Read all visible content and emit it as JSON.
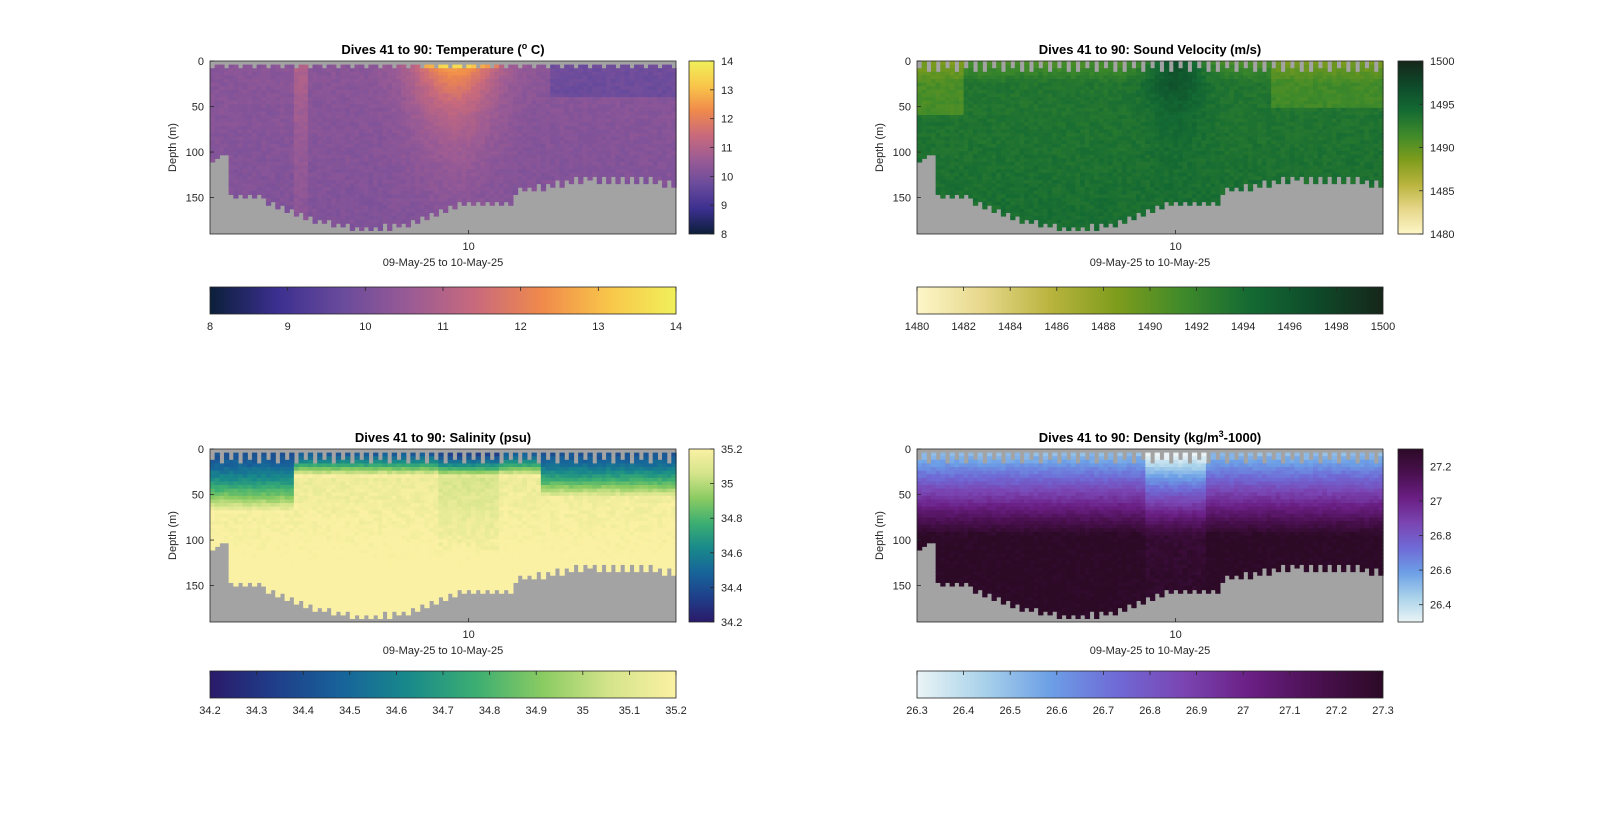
{
  "chart_data": [
    {
      "type": "heatmap",
      "title": "Dives 41 to 90: Temperature (",
      "title_sup": "o",
      "title_end": " C)",
      "ylabel": "Depth (m)",
      "xlabel": "09-May-25 to 10-May-25",
      "x_ticks": [
        "10"
      ],
      "y_ticks": [
        "0",
        "50",
        "100",
        "150"
      ],
      "ylim": [
        0,
        190
      ],
      "colorbar_right_ticks": [
        "8",
        "9",
        "10",
        "11",
        "12",
        "13",
        "14"
      ],
      "colorbar_bottom_ticks": [
        "8",
        "9",
        "10",
        "11",
        "12",
        "13",
        "14"
      ],
      "clim": [
        8,
        14
      ],
      "colormap": [
        "#0b1f3a",
        "#3b2f8f",
        "#6a4b9c",
        "#9a5b95",
        "#c96a7c",
        "#f08a4b",
        "#f9c64a",
        "#f0f05a"
      ]
    },
    {
      "type": "heatmap",
      "title": "Dives 41 to 90: Sound Velocity (m/s)",
      "title_sup": "",
      "title_end": "",
      "ylabel": "Depth (m)",
      "xlabel": "09-May-25 to 10-May-25",
      "x_ticks": [
        "10"
      ],
      "y_ticks": [
        "0",
        "50",
        "100",
        "150"
      ],
      "ylim": [
        0,
        190
      ],
      "colorbar_right_ticks": [
        "1480",
        "1485",
        "1490",
        "1495",
        "1500"
      ],
      "colorbar_bottom_ticks": [
        "1480",
        "1482",
        "1484",
        "1486",
        "1488",
        "1490",
        "1492",
        "1494",
        "1496",
        "1498",
        "1500"
      ],
      "clim": [
        1480,
        1500
      ],
      "colormap": [
        "#fdf6c8",
        "#e6d78a",
        "#b9b43e",
        "#7e9c1c",
        "#3f8a2a",
        "#146a33",
        "#0e4a2a",
        "#16261a"
      ]
    },
    {
      "type": "heatmap",
      "title": "Dives 41 to 90: Salinity (psu)",
      "title_sup": "",
      "title_end": "",
      "ylabel": "Depth (m)",
      "xlabel": "09-May-25 to 10-May-25",
      "x_ticks": [
        "10"
      ],
      "y_ticks": [
        "0",
        "50",
        "100",
        "150"
      ],
      "ylim": [
        0,
        190
      ],
      "colorbar_right_ticks": [
        "34.2",
        "34.4",
        "34.6",
        "34.8",
        "35",
        "35.2"
      ],
      "colorbar_bottom_ticks": [
        "34.2",
        "34.3",
        "34.4",
        "34.5",
        "34.6",
        "34.7",
        "34.8",
        "34.9",
        "35",
        "35.1",
        "35.2"
      ],
      "clim": [
        34.2,
        35.2
      ],
      "colormap": [
        "#2a1a6a",
        "#1f3f8a",
        "#17649a",
        "#198a8a",
        "#3cae72",
        "#8acb62",
        "#d4e48a",
        "#fbf1a4"
      ]
    },
    {
      "type": "heatmap",
      "title": "Dives 41 to 90: Density (kg/m",
      "title_sup": "3",
      "title_end": "-1000)",
      "ylabel": "Depth (m)",
      "xlabel": "09-May-25 to 10-May-25",
      "x_ticks": [
        "10"
      ],
      "y_ticks": [
        "0",
        "50",
        "100",
        "150"
      ],
      "ylim": [
        0,
        190
      ],
      "colorbar_right_ticks": [
        "26.4",
        "26.6",
        "26.8",
        "27",
        "27.2"
      ],
      "colorbar_bottom_ticks": [
        "26.3",
        "26.4",
        "26.5",
        "26.6",
        "26.7",
        "26.8",
        "26.9",
        "27",
        "27.1",
        "27.2",
        "27.3"
      ],
      "clim": [
        26.3,
        27.3
      ],
      "colormap": [
        "#eaf4f6",
        "#a9d2ea",
        "#6c9fe6",
        "#6f6ad6",
        "#7a45b2",
        "#6a1f84",
        "#4a1050",
        "#2c0a26"
      ]
    }
  ]
}
